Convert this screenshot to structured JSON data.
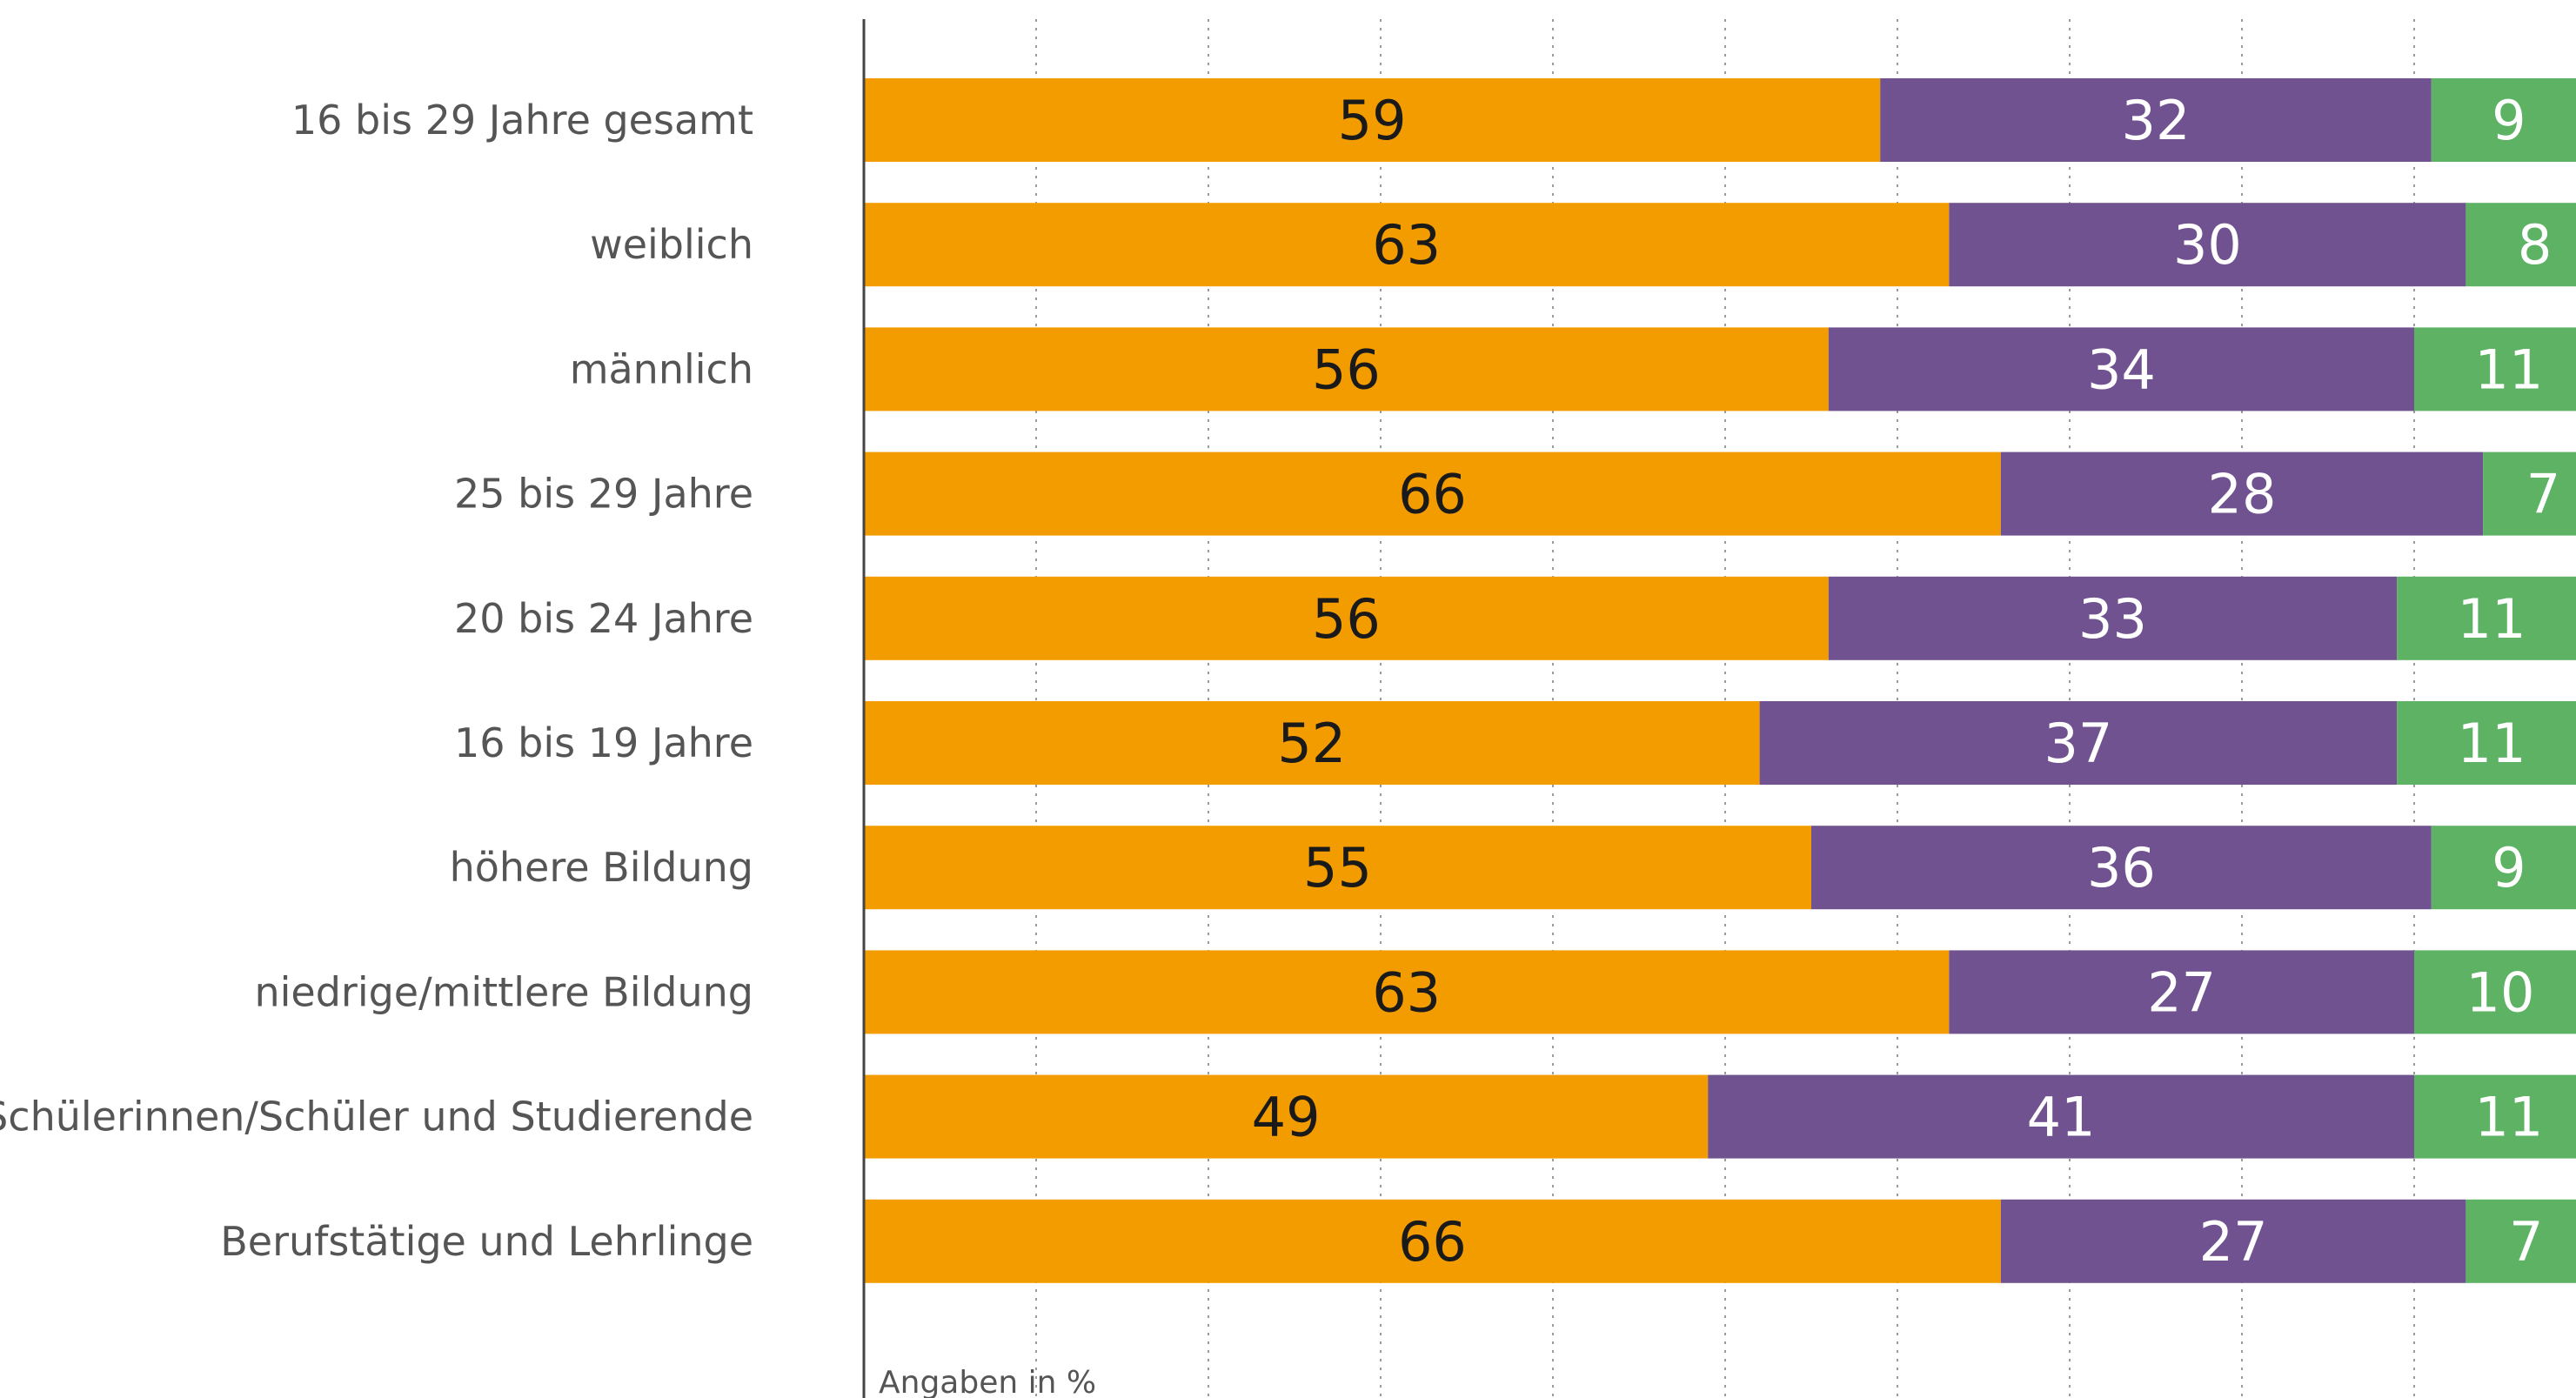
{
  "chart_data": {
    "type": "bar",
    "orientation": "horizontal",
    "stacked": true,
    "categories": [
      "16 bis 29 Jahre gesamt",
      "weiblich",
      "männlich",
      "25 bis 29 Jahre",
      "20 bis 24 Jahre",
      "16 bis 19 Jahre",
      "höhere Bildung",
      "niedrige/mittlere Bildung",
      "Schülerinnen/Schüler und Studierende",
      "Berufstätige und Lehrlinge"
    ],
    "series": [
      {
        "values": [
          59,
          63,
          56,
          66,
          56,
          52,
          55,
          63,
          49,
          66
        ],
        "color": "#F39C00",
        "label_color": "#1a1a1a"
      },
      {
        "values": [
          32,
          30,
          34,
          28,
          33,
          37,
          36,
          27,
          41,
          27
        ],
        "color": "#715290",
        "label_color": "#ffffff"
      },
      {
        "values": [
          9,
          8,
          11,
          7,
          11,
          11,
          9,
          10,
          11,
          7
        ],
        "color": "#5DB264",
        "label_color": "#ffffff"
      }
    ],
    "xlim": [
      0,
      100
    ],
    "grid": true,
    "grid_style": "dotted vertical",
    "note": "Angaben in %",
    "title": "",
    "xlabel": "",
    "ylabel": ""
  }
}
